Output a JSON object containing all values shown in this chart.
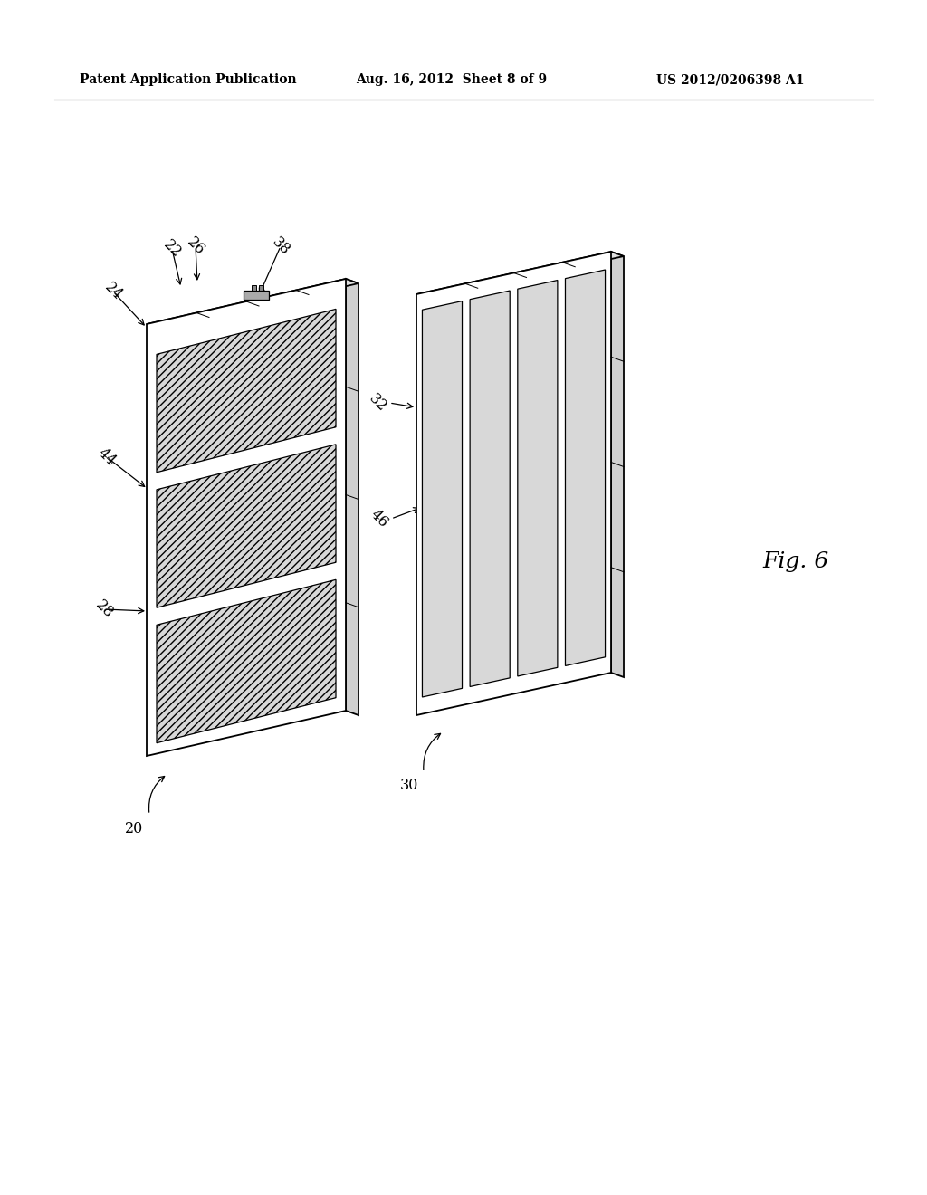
{
  "bg_color": "#ffffff",
  "header_left": "Patent Application Publication",
  "header_center": "Aug. 16, 2012  Sheet 8 of 9",
  "header_right": "US 2012/0206398 A1",
  "fig_label": "Fig. 6",
  "label_20": "20",
  "label_22": "22",
  "label_24": "24",
  "label_26": "26",
  "label_28": "28",
  "label_38": "38",
  "label_44": "44",
  "label_30": "30",
  "label_32": "32",
  "label_46": "46"
}
